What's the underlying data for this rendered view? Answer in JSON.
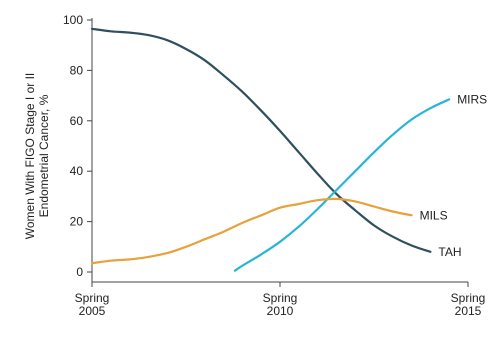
{
  "chart_data": {
    "type": "line",
    "ylabel_lines": [
      "Women With FIGO Stage I or II",
      "Endometrial Cancer, %"
    ],
    "xlabel": "",
    "x_ticks": [
      {
        "x": 2005,
        "lines": [
          "Spring",
          "2005"
        ]
      },
      {
        "x": 2010,
        "lines": [
          "Spring",
          "2010"
        ]
      },
      {
        "x": 2015,
        "lines": [
          "Spring",
          "2015"
        ]
      }
    ],
    "y_ticks": [
      0,
      20,
      40,
      60,
      80,
      100
    ],
    "xlim": [
      2005,
      2015
    ],
    "ylim": [
      0,
      100
    ],
    "grid": false,
    "series": [
      {
        "name": "TAH",
        "color": "#2f4f5f",
        "points": [
          [
            2005.0,
            96.5
          ],
          [
            2005.5,
            95.5
          ],
          [
            2006.0,
            95.0
          ],
          [
            2006.5,
            94.0
          ],
          [
            2007.0,
            92.0
          ],
          [
            2007.5,
            88.5
          ],
          [
            2008.0,
            84.0
          ],
          [
            2008.5,
            78.0
          ],
          [
            2009.0,
            71.5
          ],
          [
            2009.5,
            64.0
          ],
          [
            2010.0,
            56.0
          ],
          [
            2010.5,
            47.5
          ],
          [
            2011.0,
            39.0
          ],
          [
            2011.5,
            31.0
          ],
          [
            2012.0,
            24.5
          ],
          [
            2012.5,
            18.5
          ],
          [
            2013.0,
            14.0
          ],
          [
            2013.5,
            10.5
          ],
          [
            2014.0,
            8.0
          ]
        ]
      },
      {
        "name": "MIRS",
        "color": "#29b5d8",
        "points": [
          [
            2008.8,
            0.5
          ],
          [
            2009.0,
            2.5
          ],
          [
            2009.5,
            7.0
          ],
          [
            2010.0,
            12.0
          ],
          [
            2010.5,
            18.0
          ],
          [
            2011.0,
            25.0
          ],
          [
            2011.5,
            32.5
          ],
          [
            2012.0,
            40.0
          ],
          [
            2012.5,
            47.5
          ],
          [
            2013.0,
            54.5
          ],
          [
            2013.5,
            60.5
          ],
          [
            2014.0,
            65.0
          ],
          [
            2014.5,
            68.5
          ]
        ]
      },
      {
        "name": "MILS",
        "color": "#e6a23c",
        "points": [
          [
            2005.0,
            3.5
          ],
          [
            2005.5,
            4.5
          ],
          [
            2006.0,
            5.0
          ],
          [
            2006.5,
            6.0
          ],
          [
            2007.0,
            7.5
          ],
          [
            2007.5,
            10.0
          ],
          [
            2008.0,
            13.0
          ],
          [
            2008.5,
            16.0
          ],
          [
            2009.0,
            19.5
          ],
          [
            2009.5,
            22.5
          ],
          [
            2010.0,
            25.5
          ],
          [
            2010.5,
            27.0
          ],
          [
            2011.0,
            28.5
          ],
          [
            2011.5,
            29.0
          ],
          [
            2012.0,
            28.0
          ],
          [
            2012.5,
            26.0
          ],
          [
            2013.0,
            24.0
          ],
          [
            2013.5,
            22.5
          ]
        ]
      }
    ]
  }
}
